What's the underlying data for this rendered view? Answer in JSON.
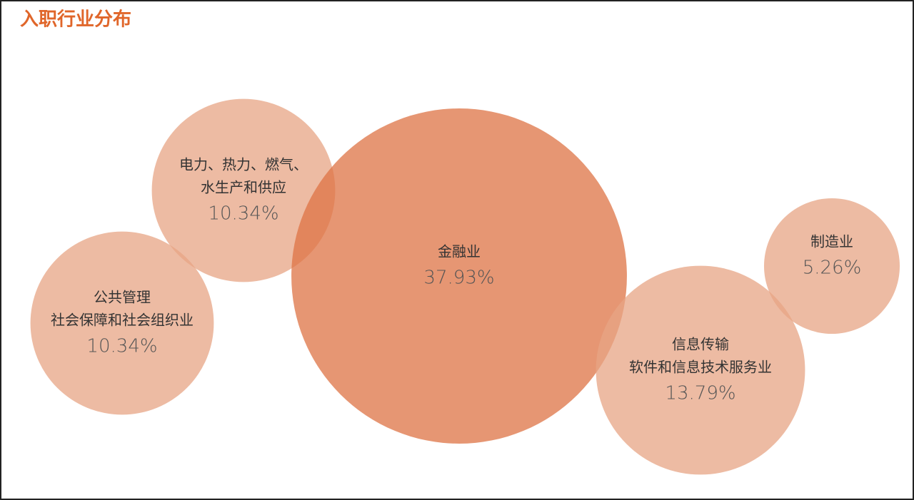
{
  "chart_data": {
    "type": "bubble",
    "title": "入职行业分布",
    "categories": [
      [
        "电力、热力、燃气、",
        "水生产和供应"
      ],
      [
        "公共管理",
        "社会保障和社会组织业"
      ],
      [
        "金融业"
      ],
      [
        "信息传输",
        "软件和信息技术服务业"
      ],
      [
        "制造业"
      ]
    ],
    "values": [
      10.34,
      10.34,
      37.93,
      13.79,
      5.26
    ],
    "value_labels": [
      "10.34%",
      "10.34%",
      "37.93%",
      "13.79%",
      "5.26%"
    ],
    "colors": [
      "#e7a484",
      "#e7a484",
      "#de7344",
      "#e7a484",
      "#e7a484"
    ]
  }
}
